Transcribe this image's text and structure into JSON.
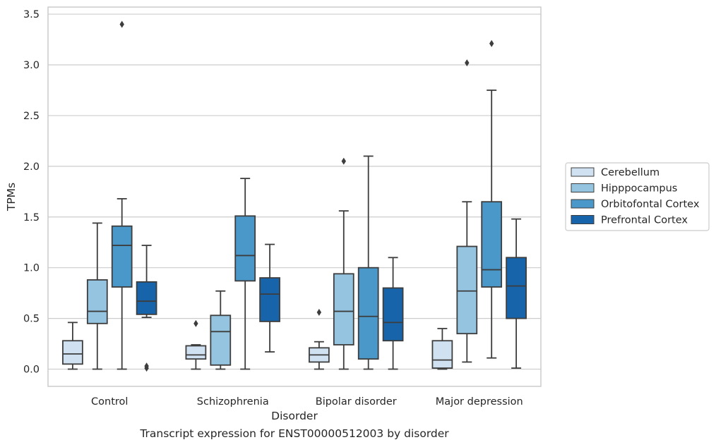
{
  "chart_data": {
    "type": "box",
    "xlabel": "Disorder",
    "ylabel": "TPMs",
    "caption": "Transcript expression for ENST00000512003 by disorder",
    "categories": [
      "Control",
      "Schizophrenia",
      "Bipolar disorder",
      "Major depression"
    ],
    "ylim": [
      -0.17,
      3.57
    ],
    "yticks": [
      "0.0",
      "0.5",
      "1.0",
      "1.5",
      "2.0",
      "2.5",
      "3.0",
      "3.5"
    ],
    "grid": true,
    "legend_position": "right",
    "series": [
      {
        "name": "Cerebellum",
        "color": "#d0e1f2",
        "boxes": [
          {
            "whislo": 0.0,
            "q1": 0.05,
            "med": 0.15,
            "q3": 0.28,
            "whishi": 0.46,
            "fliers": []
          },
          {
            "whislo": 0.0,
            "q1": 0.1,
            "med": 0.14,
            "q3": 0.23,
            "whishi": 0.24,
            "fliers": [
              0.45
            ]
          },
          {
            "whislo": 0.0,
            "q1": 0.07,
            "med": 0.14,
            "q3": 0.21,
            "whishi": 0.27,
            "fliers": [
              0.56
            ]
          },
          {
            "whislo": 0.0,
            "q1": 0.01,
            "med": 0.09,
            "q3": 0.28,
            "whishi": 0.4,
            "fliers": []
          }
        ]
      },
      {
        "name": "Hipppocampus",
        "color": "#94c4df",
        "boxes": [
          {
            "whislo": 0.0,
            "q1": 0.45,
            "med": 0.57,
            "q3": 0.88,
            "whishi": 1.44,
            "fliers": []
          },
          {
            "whislo": 0.0,
            "q1": 0.04,
            "med": 0.37,
            "q3": 0.53,
            "whishi": 0.77,
            "fliers": []
          },
          {
            "whislo": 0.0,
            "q1": 0.24,
            "med": 0.57,
            "q3": 0.94,
            "whishi": 1.56,
            "fliers": [
              2.05
            ]
          },
          {
            "whislo": 0.07,
            "q1": 0.35,
            "med": 0.77,
            "q3": 1.21,
            "whishi": 1.65,
            "fliers": [
              3.02
            ]
          }
        ]
      },
      {
        "name": "Orbitofontal Cortex",
        "color": "#4a98c9",
        "boxes": [
          {
            "whislo": 0.0,
            "q1": 0.81,
            "med": 1.22,
            "q3": 1.41,
            "whishi": 1.68,
            "fliers": [
              3.4
            ]
          },
          {
            "whislo": 0.0,
            "q1": 0.87,
            "med": 1.12,
            "q3": 1.51,
            "whishi": 1.88,
            "fliers": []
          },
          {
            "whislo": 0.0,
            "q1": 0.1,
            "med": 0.52,
            "q3": 1.0,
            "whishi": 2.1,
            "fliers": []
          },
          {
            "whislo": 0.11,
            "q1": 0.81,
            "med": 0.98,
            "q3": 1.65,
            "whishi": 2.75,
            "fliers": [
              3.21
            ]
          }
        ]
      },
      {
        "name": "Prefrontal Cortex",
        "color": "#1764ab",
        "boxes": [
          {
            "whislo": 0.51,
            "q1": 0.54,
            "med": 0.67,
            "q3": 0.86,
            "whishi": 1.22,
            "fliers": [
              0.01,
              0.03
            ]
          },
          {
            "whislo": 0.17,
            "q1": 0.47,
            "med": 0.74,
            "q3": 0.9,
            "whishi": 1.23,
            "fliers": []
          },
          {
            "whislo": 0.0,
            "q1": 0.28,
            "med": 0.46,
            "q3": 0.8,
            "whishi": 1.1,
            "fliers": []
          },
          {
            "whislo": 0.01,
            "q1": 0.5,
            "med": 0.82,
            "q3": 1.1,
            "whishi": 1.48,
            "fliers": []
          }
        ]
      }
    ]
  }
}
